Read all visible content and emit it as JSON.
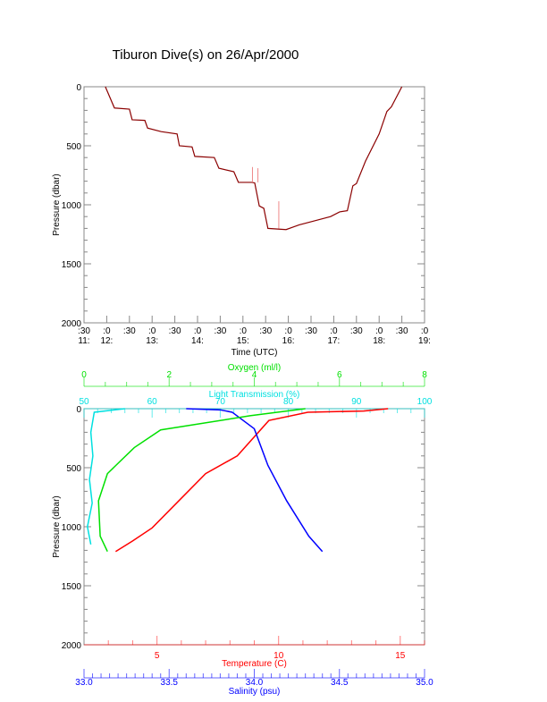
{
  "chart_data": [
    {
      "type": "line",
      "title": "Tiburon Dive(s) on 26/Apr/2000",
      "xlabel": "Time (UTC)",
      "ylabel": "Pressure (dbar)",
      "xlim": [
        11.5,
        19
      ],
      "ylim": [
        2000,
        0
      ],
      "yticks": [
        "0",
        "500",
        "1000",
        "1500",
        "2000"
      ],
      "xticks": [
        {
          "t": 11.5,
          "a": ":30",
          "b": "11:"
        },
        {
          "t": 12,
          "a": ":0",
          "b": "12:"
        },
        {
          "t": 12.5,
          "a": ":30",
          "b": ""
        },
        {
          "t": 13,
          "a": ":0",
          "b": "13:"
        },
        {
          "t": 13.5,
          "a": ":30",
          "b": ""
        },
        {
          "t": 14,
          "a": ":0",
          "b": "14:"
        },
        {
          "t": 14.5,
          "a": ":30",
          "b": ""
        },
        {
          "t": 15,
          "a": ":0",
          "b": "15:"
        },
        {
          "t": 15.5,
          "a": ":30",
          "b": ""
        },
        {
          "t": 16,
          "a": ":0",
          "b": "16:"
        },
        {
          "t": 16.5,
          "a": ":30",
          "b": ""
        },
        {
          "t": 17,
          "a": ":0",
          "b": "17:"
        },
        {
          "t": 17.5,
          "a": ":30",
          "b": ""
        },
        {
          "t": 18,
          "a": ":0",
          "b": "18:"
        },
        {
          "t": 18.5,
          "a": ":30",
          "b": ""
        },
        {
          "t": 19,
          "a": ":0",
          "b": "19:"
        }
      ],
      "series": [
        {
          "name": "dive",
          "color": "#8b0000",
          "x": [
            11.97,
            12.17,
            12.5,
            12.56,
            12.84,
            12.9,
            13.2,
            13.55,
            13.6,
            13.88,
            13.94,
            14.37,
            14.47,
            14.8,
            14.9,
            15.2,
            15.26,
            15.36,
            15.46,
            15.55,
            15.95,
            16.24,
            16.54,
            16.93,
            17.13,
            17.3,
            17.42,
            17.5,
            17.7,
            18.0,
            18.17,
            18.27,
            18.5
          ],
          "y": [
            0,
            180,
            190,
            280,
            285,
            350,
            380,
            400,
            500,
            510,
            590,
            600,
            690,
            720,
            810,
            810,
            815,
            1010,
            1030,
            1200,
            1210,
            1170,
            1140,
            1100,
            1060,
            1050,
            840,
            820,
            630,
            400,
            210,
            170,
            0
          ]
        }
      ]
    },
    {
      "type": "line",
      "ylabel": "Pressure (dbar)",
      "ylim": [
        2000,
        0
      ],
      "yticks": [
        "0",
        "500",
        "1000",
        "1500",
        "2000"
      ],
      "axes": {
        "oxygen": {
          "label": "Oxygen (ml/l)",
          "range": [
            0,
            8
          ],
          "ticks": [
            "0",
            "2",
            "4",
            "6",
            "8"
          ],
          "color": "#00e000"
        },
        "light": {
          "label": "Light Transmission (%)",
          "range": [
            50,
            100
          ],
          "ticks": [
            "50",
            "60",
            "70",
            "80",
            "90",
            "100"
          ],
          "color": "#00e0e0"
        },
        "temperature": {
          "label": "Temperature (C)",
          "range": [
            2,
            16
          ],
          "ticks": [
            "5",
            "10",
            "15"
          ],
          "color": "#ff0000"
        },
        "salinity": {
          "label": "Salinity (psu)",
          "range": [
            33,
            35
          ],
          "ticks": [
            "33.0",
            "33.5",
            "34.0",
            "34.5",
            "35.0"
          ],
          "color": "#0000ff"
        }
      },
      "series": [
        {
          "name": "Temperature",
          "axis": "temperature",
          "x": [
            14.5,
            13.5,
            11.2,
            9.6,
            8.3,
            7.0,
            5.9,
            4.8,
            4.0,
            3.3
          ],
          "y": [
            0,
            20,
            30,
            100,
            400,
            550,
            780,
            1010,
            1120,
            1210
          ]
        },
        {
          "name": "Salinity",
          "axis": "salinity",
          "x": [
            33.6,
            33.8,
            33.87,
            34.0,
            34.08,
            34.19,
            34.32,
            34.4
          ],
          "y": [
            0,
            10,
            30,
            170,
            480,
            780,
            1080,
            1210
          ]
        },
        {
          "name": "Oxygen",
          "axis": "oxygen",
          "x": [
            5.2,
            3.9,
            1.8,
            1.18,
            0.55,
            0.34,
            0.38,
            0.55
          ],
          "y": [
            0,
            60,
            180,
            330,
            550,
            780,
            1080,
            1210
          ]
        },
        {
          "name": "Light Transmission",
          "axis": "light",
          "x": [
            56,
            51.5,
            51,
            51.3,
            50.8,
            51.2,
            50.5,
            51
          ],
          "y": [
            0,
            30,
            200,
            400,
            600,
            800,
            1000,
            1150
          ]
        }
      ]
    }
  ]
}
